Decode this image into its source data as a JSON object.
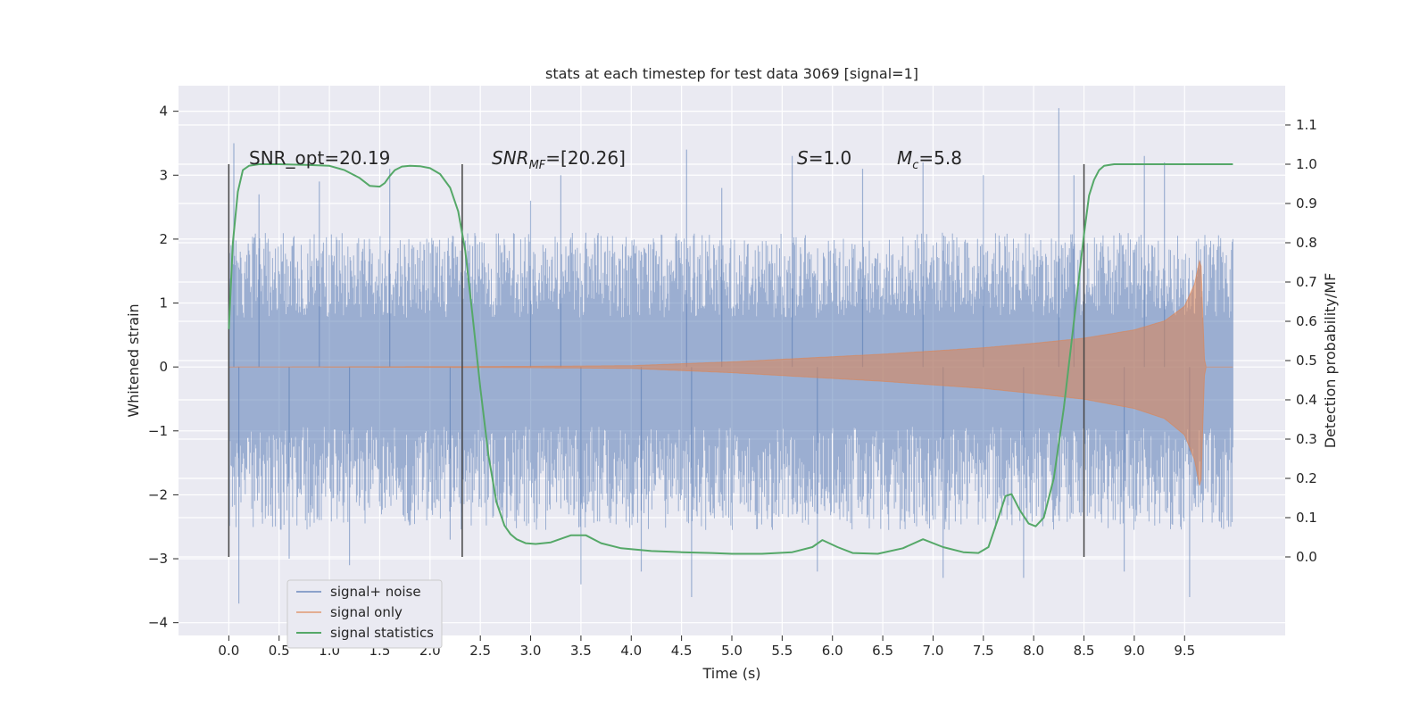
{
  "chart_data": {
    "type": "line",
    "title": "stats at each timestep for test data 3069 [signal=1]",
    "xlabel": "Time (s)",
    "ylabel_left": "Whitened strain",
    "ylabel_right": "Detection probability/MF",
    "xlim": [
      -0.5,
      10.5
    ],
    "ylim_left": [
      -4.2,
      4.4
    ],
    "ylim_right": [
      -0.2,
      1.2
    ],
    "x_ticks": [
      0.0,
      0.5,
      1.0,
      1.5,
      2.0,
      2.5,
      3.0,
      3.5,
      4.0,
      4.5,
      5.0,
      5.5,
      6.0,
      6.5,
      7.0,
      7.5,
      8.0,
      8.5,
      9.0,
      9.5
    ],
    "x_tick_labels": [
      "0.0",
      "0.5",
      "1.0",
      "1.5",
      "2.0",
      "2.5",
      "3.0",
      "3.5",
      "4.0",
      "4.5",
      "5.0",
      "5.5",
      "6.0",
      "6.5",
      "7.0",
      "7.5",
      "8.0",
      "8.5",
      "9.0",
      "9.5"
    ],
    "left_ticks": [
      4,
      3,
      2,
      1,
      0,
      -1,
      -2,
      -3,
      -4
    ],
    "left_tick_labels": [
      "4",
      "3",
      "2",
      "1",
      "0",
      "−1",
      "−2",
      "−3",
      "−4"
    ],
    "right_ticks": [
      1.1,
      1.0,
      0.9,
      0.8,
      0.7,
      0.6,
      0.5,
      0.4,
      0.3,
      0.2,
      0.1,
      0.0
    ],
    "right_tick_labels": [
      "1.1",
      "1.0",
      "0.9",
      "0.8",
      "0.7",
      "0.6",
      "0.5",
      "0.4",
      "0.3",
      "0.2",
      "0.1",
      "0.0"
    ],
    "grid": true,
    "legend_position": "lower-left",
    "annotations": {
      "snr_opt": "SNR_opt=20.19",
      "snr_mf_main": "SNR",
      "snr_mf_sub": "MF",
      "snr_mf_rest": "=[20.26]",
      "s_main": "S",
      "s_rest": "=1.0",
      "mc_main": "M",
      "mc_sub": "c",
      "mc_rest": "=5.8"
    },
    "vertical_markers": [
      0.0,
      2.32,
      8.5
    ],
    "series": [
      {
        "name": "signal+ noise",
        "color": "#4c72b0",
        "axis": "left",
        "description_stats": {
          "typical_envelope_upper": 1.4,
          "typical_envelope_lower": -1.7,
          "max": 4.05,
          "min": -3.72
        },
        "spikes": [
          [
            0.05,
            3.5
          ],
          [
            0.1,
            -3.7
          ],
          [
            0.3,
            2.7
          ],
          [
            0.6,
            -3.0
          ],
          [
            0.9,
            2.9
          ],
          [
            1.2,
            -3.1
          ],
          [
            1.6,
            3.1
          ],
          [
            2.2,
            -2.7
          ],
          [
            3.0,
            2.6
          ],
          [
            3.3,
            3.0
          ],
          [
            3.5,
            -3.4
          ],
          [
            4.1,
            -3.2
          ],
          [
            4.55,
            3.4
          ],
          [
            4.6,
            -3.6
          ],
          [
            4.9,
            2.8
          ],
          [
            5.6,
            3.3
          ],
          [
            5.85,
            -3.2
          ],
          [
            6.3,
            3.1
          ],
          [
            6.9,
            3.2
          ],
          [
            7.1,
            -3.3
          ],
          [
            7.5,
            3.0
          ],
          [
            7.9,
            -3.3
          ],
          [
            8.25,
            4.05
          ],
          [
            8.4,
            3.0
          ],
          [
            8.9,
            -3.2
          ],
          [
            9.1,
            3.3
          ],
          [
            9.3,
            3.2
          ],
          [
            9.55,
            -3.6
          ]
        ]
      },
      {
        "name": "signal only",
        "color": "#dd8452",
        "axis": "left",
        "envelope": {
          "t": [
            0.0,
            2.0,
            3.0,
            4.0,
            4.5,
            5.0,
            5.5,
            6.0,
            6.5,
            7.0,
            7.5,
            8.0,
            8.5,
            9.0,
            9.3,
            9.5,
            9.6,
            9.66,
            9.7,
            10.0
          ],
          "amp": [
            0.0,
            0.005,
            0.01,
            0.02,
            0.05,
            0.08,
            0.12,
            0.16,
            0.2,
            0.25,
            0.3,
            0.37,
            0.45,
            0.58,
            0.72,
            0.95,
            1.3,
            1.75,
            0.0,
            0.0
          ]
        }
      },
      {
        "name": "signal statistics",
        "color": "#55a868",
        "axis": "right",
        "x": [
          0.0,
          0.04,
          0.09,
          0.14,
          0.2,
          0.3,
          0.5,
          0.8,
          1.0,
          1.15,
          1.3,
          1.4,
          1.5,
          1.55,
          1.6,
          1.65,
          1.72,
          1.8,
          1.9,
          2.0,
          2.1,
          2.2,
          2.28,
          2.35,
          2.42,
          2.5,
          2.58,
          2.66,
          2.74,
          2.8,
          2.86,
          2.95,
          3.05,
          3.2,
          3.4,
          3.55,
          3.7,
          3.9,
          4.2,
          4.5,
          4.8,
          5.0,
          5.3,
          5.6,
          5.8,
          5.9,
          6.05,
          6.2,
          6.45,
          6.7,
          6.9,
          7.1,
          7.3,
          7.45,
          7.55,
          7.65,
          7.72,
          7.78,
          7.86,
          7.95,
          8.02,
          8.1,
          8.2,
          8.3,
          8.4,
          8.5,
          8.55,
          8.6,
          8.65,
          8.7,
          8.8,
          9.0,
          9.5,
          9.98
        ],
        "y": [
          0.58,
          0.8,
          0.93,
          0.985,
          0.996,
          1.0,
          1.0,
          0.998,
          0.996,
          0.985,
          0.965,
          0.945,
          0.943,
          0.952,
          0.97,
          0.985,
          0.994,
          0.996,
          0.995,
          0.99,
          0.975,
          0.94,
          0.88,
          0.78,
          0.62,
          0.43,
          0.26,
          0.14,
          0.08,
          0.058,
          0.045,
          0.035,
          0.033,
          0.037,
          0.055,
          0.055,
          0.035,
          0.022,
          0.015,
          0.012,
          0.01,
          0.008,
          0.008,
          0.012,
          0.025,
          0.043,
          0.025,
          0.01,
          0.008,
          0.022,
          0.045,
          0.025,
          0.012,
          0.01,
          0.025,
          0.1,
          0.155,
          0.16,
          0.12,
          0.085,
          0.078,
          0.1,
          0.2,
          0.38,
          0.6,
          0.82,
          0.92,
          0.96,
          0.985,
          0.996,
          1.0,
          1.0,
          1.0,
          1.0
        ]
      }
    ]
  }
}
